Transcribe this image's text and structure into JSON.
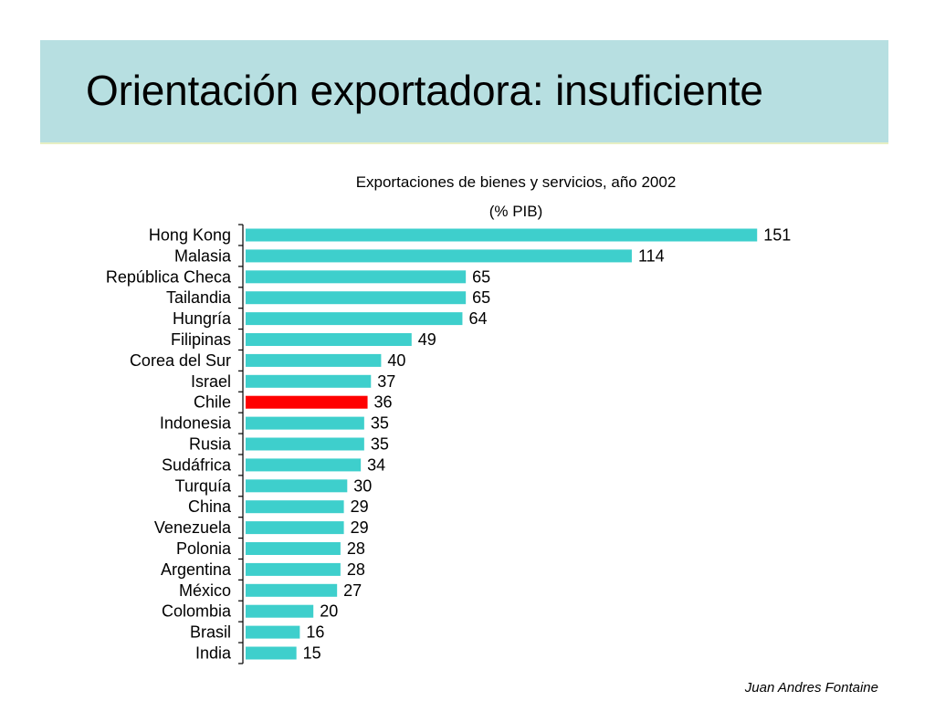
{
  "slide": {
    "title": "Orientación exportadora: insuficiente",
    "footer": "Juan Andres Fontaine"
  },
  "colors": {
    "title_band": "#b7dfe1",
    "bar": "#3ecfcc",
    "highlight_bar": "#ff0000"
  },
  "chart_data": {
    "type": "bar",
    "orientation": "horizontal",
    "title": "Exportaciones de bienes y servicios, año 2002",
    "subtitle": "(% PIB)",
    "categories": [
      "Hong Kong",
      "Malasia",
      "República Checa",
      "Tailandia",
      "Hungría",
      "Filipinas",
      "Corea del Sur",
      "Israel",
      "Chile",
      "Indonesia",
      "Rusia",
      "Sudáfrica",
      "Turquía",
      "China",
      "Venezuela",
      "Polonia",
      "Argentina",
      "México",
      "Colombia",
      "Brasil",
      "India"
    ],
    "values": [
      151,
      114,
      65,
      65,
      64,
      49,
      40,
      37,
      36,
      35,
      35,
      34,
      30,
      29,
      29,
      28,
      28,
      27,
      20,
      16,
      15
    ],
    "highlight": "Chile",
    "data_labels": true,
    "grid": false,
    "legend": "none",
    "xlim": [
      0,
      160
    ]
  }
}
